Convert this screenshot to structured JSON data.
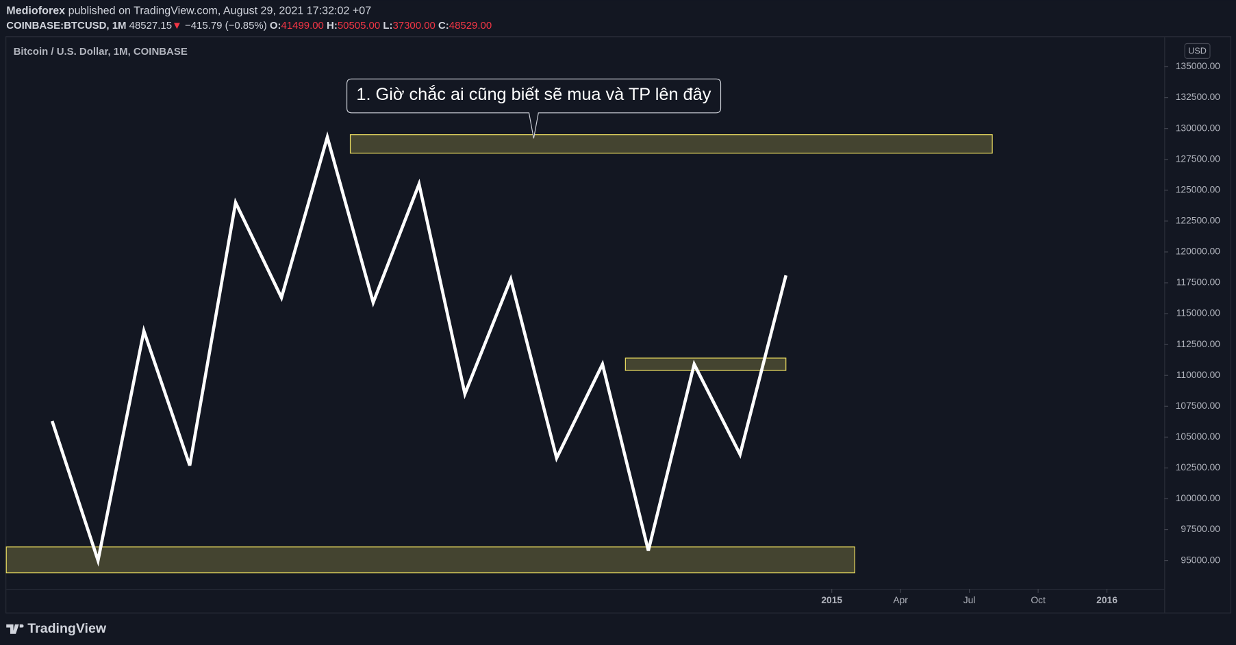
{
  "header": {
    "publisher": "Medioforex",
    "published": "published on TradingView.com, August 29, 2021 17:32:02 +07",
    "symbol": "COINBASE:BTCUSD, 1M",
    "price": "48527.15",
    "arrow": "▼",
    "change": "−415.79 (−0.85%)",
    "o_label": "O:",
    "o": "41499.00",
    "h_label": "H:",
    "h": "50505.00",
    "l_label": "L:",
    "l": "37300.00",
    "c_label": "C:",
    "c": "48529.00"
  },
  "chart_data": {
    "type": "line",
    "title": "Bitcoin / U.S. Dollar, 1M, COINBASE",
    "currency": "USD",
    "x": [
      -34,
      -32,
      -30,
      -28,
      -26,
      -24,
      -22,
      -20,
      -18,
      -16,
      -14,
      -12,
      -10,
      -8,
      -6,
      -4,
      -2
    ],
    "series": [
      {
        "color": "#ffffff",
        "values": [
          106300,
          95000,
          113600,
          102700,
          124000,
          116300,
          129300,
          115900,
          125500,
          108500,
          117800,
          103300,
          110900,
          95800,
          110900,
          103600,
          118100
        ]
      }
    ],
    "xlim": [
      -36,
      14.5
    ],
    "xticks": [
      {
        "value": 0,
        "label": "2015"
      },
      {
        "value": 3,
        "label": "Apr"
      },
      {
        "value": 6,
        "label": "Jul"
      },
      {
        "value": 9,
        "label": "Oct"
      },
      {
        "value": 12,
        "label": "2016"
      }
    ],
    "ylim": [
      92700,
      137400
    ],
    "yticks": [
      {
        "value": 95000,
        "label": "95000.00"
      },
      {
        "value": 97500,
        "label": "97500.00"
      },
      {
        "value": 100000,
        "label": "100000.00"
      },
      {
        "value": 102500,
        "label": "102500.00"
      },
      {
        "value": 105000,
        "label": "105000.00"
      },
      {
        "value": 107500,
        "label": "107500.00"
      },
      {
        "value": 110000,
        "label": "110000.00"
      },
      {
        "value": 112500,
        "label": "112500.00"
      },
      {
        "value": 115000,
        "label": "115000.00"
      },
      {
        "value": 117500,
        "label": "117500.00"
      },
      {
        "value": 120000,
        "label": "120000.00"
      },
      {
        "value": 122500,
        "label": "122500.00"
      },
      {
        "value": 125000,
        "label": "125000.00"
      },
      {
        "value": 127500,
        "label": "127500.00"
      },
      {
        "value": 130000,
        "label": "130000.00"
      },
      {
        "value": 132500,
        "label": "132500.00"
      },
      {
        "value": 135000,
        "label": "135000.00"
      }
    ],
    "zones": [
      {
        "x0": -21,
        "x1": 7,
        "y0": 128000,
        "y1": 129500
      },
      {
        "x0": -9,
        "x1": -2,
        "y0": 110400,
        "y1": 111400
      },
      {
        "x0": -36,
        "x1": 1,
        "y0": 94000,
        "y1": 96100
      }
    ],
    "zone_color": "#f5e663",
    "annotation": {
      "text": "1. Giờ chắc ai cũng biết sẽ mua và TP lên đây",
      "x": -13,
      "y": 129200
    }
  },
  "footer": {
    "brand": "TradingView"
  }
}
